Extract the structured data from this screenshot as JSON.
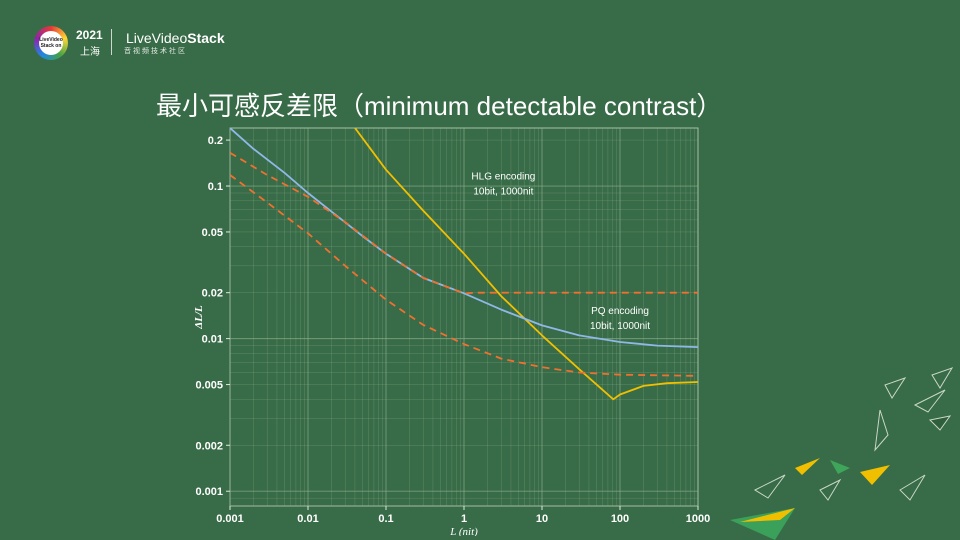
{
  "header": {
    "logo_text": "LiveVideo Stack on",
    "event_year": "2021",
    "event_city": "上海",
    "brand_prefix": "LiveVideo",
    "brand_suffix": "Stack",
    "brand_subtitle": "音视频技术社区"
  },
  "slide": {
    "title": "最小可感反差限（minimum detectable contrast）"
  },
  "chart_data": {
    "type": "line",
    "xscale": "log",
    "yscale": "log",
    "xlim": [
      0.001,
      1000
    ],
    "ylim": [
      0.0008,
      0.24
    ],
    "grid": true,
    "xlabel": "L (nit)",
    "ylabel": "ΔL/L",
    "xticks": [
      0.001,
      0.01,
      0.1,
      1,
      10,
      100,
      1000
    ],
    "xtick_labels": [
      "0.001",
      "0.01",
      "0.1",
      "1",
      "10",
      "100",
      "1000"
    ],
    "yticks": [
      0.001,
      0.002,
      0.005,
      0.01,
      0.02,
      0.05,
      0.1,
      0.2
    ],
    "ytick_labels": [
      "0.001",
      "0.002",
      "0.005",
      "0.01",
      "0.02",
      "0.05",
      "0.1",
      "0.2"
    ],
    "series": [
      {
        "key": "pq",
        "color": "#f0c000",
        "dash": false,
        "points": [
          [
            0.04,
            0.24
          ],
          [
            0.1,
            0.128
          ],
          [
            0.3,
            0.069
          ],
          [
            1,
            0.036
          ],
          [
            3,
            0.019
          ],
          [
            10,
            0.0105
          ],
          [
            30,
            0.0063
          ],
          [
            82,
            0.004
          ],
          [
            100,
            0.0043
          ],
          [
            200,
            0.0049
          ],
          [
            400,
            0.0051
          ],
          [
            1000,
            0.0052
          ]
        ]
      },
      {
        "key": "blue",
        "color": "#8fb8e8",
        "dash": false,
        "points": [
          [
            0.001,
            0.24
          ],
          [
            0.002,
            0.175
          ],
          [
            0.005,
            0.122
          ],
          [
            0.01,
            0.09
          ],
          [
            0.02,
            0.068
          ],
          [
            0.05,
            0.047
          ],
          [
            0.1,
            0.036
          ],
          [
            0.3,
            0.025
          ],
          [
            1,
            0.0198
          ],
          [
            3,
            0.0155
          ],
          [
            10,
            0.0122
          ],
          [
            30,
            0.0105
          ],
          [
            100,
            0.0095
          ],
          [
            300,
            0.009
          ],
          [
            1000,
            0.0088
          ]
        ]
      },
      {
        "key": "hlg",
        "color": "#f07030",
        "dash": true,
        "points": [
          [
            0.001,
            0.165
          ],
          [
            0.003,
            0.118
          ],
          [
            0.01,
            0.085
          ],
          [
            0.03,
            0.058
          ],
          [
            0.1,
            0.036
          ],
          [
            0.3,
            0.025
          ],
          [
            1,
            0.0198
          ],
          [
            1.5,
            0.02
          ],
          [
            10,
            0.02
          ],
          [
            100,
            0.02
          ],
          [
            1000,
            0.02
          ]
        ]
      },
      {
        "key": "lower",
        "color": "#f07030",
        "dash": true,
        "points": [
          [
            0.001,
            0.118
          ],
          [
            0.003,
            0.078
          ],
          [
            0.01,
            0.049
          ],
          [
            0.03,
            0.03
          ],
          [
            0.1,
            0.018
          ],
          [
            0.3,
            0.0123
          ],
          [
            1,
            0.0092
          ],
          [
            3,
            0.0074
          ],
          [
            10,
            0.0065
          ],
          [
            30,
            0.006
          ],
          [
            100,
            0.0058
          ],
          [
            1000,
            0.0057
          ]
        ]
      }
    ],
    "annotations": [
      {
        "lines": [
          "HLG encoding",
          "10bit, 1000nit"
        ],
        "x": 3.2,
        "y": 0.11
      },
      {
        "lines": [
          "PQ encoding",
          "10bit, 1000nit"
        ],
        "x": 100,
        "y": 0.0145
      }
    ]
  }
}
